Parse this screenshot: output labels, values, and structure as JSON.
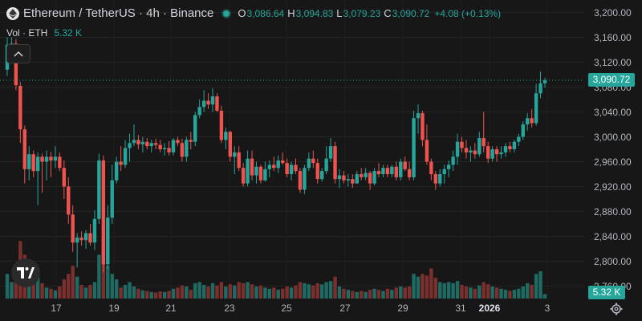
{
  "legend": {
    "title": "Ethereum / TetherUS · 4h · Binance",
    "open_key": "O",
    "open": "3,086.64",
    "high_key": "H",
    "high": "3,094.83",
    "low_key": "L",
    "low": "3,079.23",
    "close_key": "C",
    "close": "3,090.72",
    "change": "+4.08 (+0.13%)",
    "status_color": "#26a69a"
  },
  "volume_legend": {
    "label": "Vol · ETH",
    "value": "5.32 K"
  },
  "price_axis": [
    "3,200.00",
    "3,160.00",
    "3,120.00",
    "3,080.00",
    "3,040.00",
    "3,000.00",
    "2,960.00",
    "2,920.00",
    "2,880.00",
    "2,840.00",
    "2,800.00",
    "2,760.00"
  ],
  "time_axis": [
    {
      "label": "17",
      "bold": false
    },
    {
      "label": "19",
      "bold": false
    },
    {
      "label": "21",
      "bold": false
    },
    {
      "label": "23",
      "bold": false
    },
    {
      "label": "25",
      "bold": false
    },
    {
      "label": "27",
      "bold": false
    },
    {
      "label": "29",
      "bold": false
    },
    {
      "label": "31",
      "bold": false
    },
    {
      "label": "2026",
      "bold": true
    },
    {
      "label": "3",
      "bold": false
    }
  ],
  "last_price_label": "3,090.72",
  "last_volume_label": "5.32 K",
  "colors": {
    "up": "#26a69a",
    "down": "#ef5350",
    "up_vol": "#1f6b63",
    "down_vol": "#7c302e",
    "background": "#171717"
  },
  "icons": {
    "coin": "ethereum-icon",
    "collapse": "chevron-up-icon",
    "logo": "tradingview-logo",
    "settings": "gear-icon"
  },
  "chart_data": {
    "type": "candlestick",
    "symbol": "ETH/USDT",
    "interval": "4h",
    "exchange": "Binance",
    "ylim": [
      2740,
      3220
    ],
    "x_labels": [
      "17",
      "19",
      "21",
      "23",
      "25",
      "27",
      "29",
      "31",
      "2026",
      "3"
    ],
    "candles": [
      [
        3108,
        3160,
        3098,
        3148,
        45
      ],
      [
        3148,
        3160,
        3130,
        3150,
        30
      ],
      [
        3150,
        3157,
        3075,
        3083,
        60
      ],
      [
        3082,
        3088,
        2990,
        3012,
        105
      ],
      [
        3012,
        3018,
        2925,
        2948,
        80
      ],
      [
        2948,
        2985,
        2930,
        2972,
        40
      ],
      [
        2972,
        2978,
        2935,
        2945,
        35
      ],
      [
        2945,
        2975,
        2890,
        2968,
        50
      ],
      [
        2968,
        2973,
        2910,
        2960,
        28
      ],
      [
        2960,
        2978,
        2930,
        2968,
        20
      ],
      [
        2968,
        2976,
        2935,
        2962,
        18
      ],
      [
        2962,
        2985,
        2950,
        2968,
        15
      ],
      [
        2968,
        2975,
        2945,
        2950,
        22
      ],
      [
        2950,
        2962,
        2900,
        2920,
        35
      ],
      [
        2920,
        2935,
        2860,
        2875,
        45
      ],
      [
        2875,
        2890,
        2815,
        2830,
        60
      ],
      [
        2830,
        2845,
        2790,
        2838,
        40
      ],
      [
        2838,
        2848,
        2825,
        2834,
        25
      ],
      [
        2834,
        2850,
        2820,
        2845,
        20
      ],
      [
        2845,
        2860,
        2825,
        2830,
        25
      ],
      [
        2830,
        2882,
        2818,
        2868,
        30
      ],
      [
        2868,
        2973,
        2860,
        2962,
        80
      ],
      [
        2962,
        2970,
        2782,
        2795,
        110
      ],
      [
        2795,
        2890,
        2788,
        2870,
        60
      ],
      [
        2870,
        2955,
        2860,
        2930,
        45
      ],
      [
        2930,
        2968,
        2925,
        2960,
        35
      ],
      [
        2960,
        2985,
        2945,
        2955,
        20
      ],
      [
        2955,
        2995,
        2950,
        2982,
        25
      ],
      [
        2982,
        3005,
        2960,
        2990,
        30
      ],
      [
        2990,
        3020,
        2985,
        2995,
        22
      ],
      [
        2995,
        3003,
        2980,
        2988,
        18
      ],
      [
        2988,
        3000,
        2975,
        2992,
        15
      ],
      [
        2992,
        2998,
        2980,
        2985,
        14
      ],
      [
        2985,
        2995,
        2975,
        2990,
        12
      ],
      [
        2990,
        2997,
        2980,
        2987,
        11
      ],
      [
        2987,
        2995,
        2975,
        2980,
        13
      ],
      [
        2980,
        2990,
        2970,
        2982,
        12
      ],
      [
        2982,
        2993,
        2970,
        2975,
        14
      ],
      [
        2975,
        2998,
        2970,
        2995,
        18
      ],
      [
        2995,
        3000,
        2985,
        2990,
        20
      ],
      [
        2990,
        2997,
        2960,
        2968,
        24
      ],
      [
        2968,
        3000,
        2960,
        2995,
        22
      ],
      [
        2995,
        3008,
        2980,
        2992,
        16
      ],
      [
        2992,
        3040,
        2985,
        3035,
        28
      ],
      [
        3035,
        3060,
        3030,
        3048,
        30
      ],
      [
        3048,
        3075,
        3040,
        3058,
        25
      ],
      [
        3058,
        3070,
        3045,
        3052,
        22
      ],
      [
        3052,
        3078,
        3040,
        3065,
        28
      ],
      [
        3065,
        3070,
        3040,
        3042,
        24
      ],
      [
        3042,
        3050,
        2990,
        2995,
        30
      ],
      [
        2995,
        3015,
        2980,
        3008,
        22
      ],
      [
        3008,
        3010,
        2960,
        2968,
        26
      ],
      [
        2968,
        2985,
        2940,
        2975,
        24
      ],
      [
        2975,
        2985,
        2945,
        2950,
        30
      ],
      [
        2950,
        2958,
        2920,
        2925,
        28
      ],
      [
        2925,
        2978,
        2920,
        2965,
        30
      ],
      [
        2965,
        2978,
        2930,
        2938,
        26
      ],
      [
        2938,
        2960,
        2925,
        2952,
        22
      ],
      [
        2952,
        2955,
        2925,
        2930,
        24
      ],
      [
        2930,
        2960,
        2928,
        2948,
        20
      ],
      [
        2948,
        2962,
        2935,
        2955,
        18
      ],
      [
        2955,
        2968,
        2945,
        2950,
        20
      ],
      [
        2950,
        2970,
        2942,
        2962,
        16
      ],
      [
        2962,
        2975,
        2955,
        2958,
        18
      ],
      [
        2958,
        2965,
        2935,
        2940,
        22
      ],
      [
        2940,
        2960,
        2930,
        2955,
        20
      ],
      [
        2955,
        2965,
        2940,
        2945,
        24
      ],
      [
        2945,
        2950,
        2910,
        2915,
        30
      ],
      [
        2915,
        2955,
        2908,
        2950,
        28
      ],
      [
        2950,
        2975,
        2945,
        2965,
        26
      ],
      [
        2965,
        2978,
        2950,
        2958,
        24
      ],
      [
        2958,
        2965,
        2925,
        2932,
        28
      ],
      [
        2932,
        2950,
        2928,
        2945,
        26
      ],
      [
        2945,
        2985,
        2940,
        2965,
        30
      ],
      [
        2965,
        2998,
        2960,
        2985,
        32
      ],
      [
        2985,
        2992,
        2925,
        2932,
        40
      ],
      [
        2932,
        2948,
        2918,
        2938,
        22
      ],
      [
        2938,
        2945,
        2925,
        2930,
        18
      ],
      [
        2930,
        2940,
        2920,
        2932,
        16
      ],
      [
        2932,
        2940,
        2918,
        2925,
        14
      ],
      [
        2925,
        2945,
        2925,
        2940,
        12
      ],
      [
        2940,
        2950,
        2930,
        2935,
        14
      ],
      [
        2935,
        2950,
        2930,
        2942,
        12
      ],
      [
        2942,
        2945,
        2915,
        2925,
        16
      ],
      [
        2925,
        2950,
        2922,
        2945,
        18
      ],
      [
        2945,
        2958,
        2935,
        2940,
        16
      ],
      [
        2940,
        2955,
        2935,
        2950,
        14
      ],
      [
        2950,
        2955,
        2935,
        2940,
        18
      ],
      [
        2940,
        2955,
        2935,
        2952,
        16
      ],
      [
        2952,
        2960,
        2930,
        2935,
        20
      ],
      [
        2935,
        2965,
        2930,
        2960,
        22
      ],
      [
        2960,
        2968,
        2945,
        2948,
        20
      ],
      [
        2948,
        2960,
        2930,
        2935,
        22
      ],
      [
        2935,
        3042,
        2930,
        3030,
        45
      ],
      [
        3030,
        3052,
        3005,
        3038,
        40
      ],
      [
        3038,
        3042,
        2985,
        2995,
        45
      ],
      [
        2995,
        3020,
        2955,
        2960,
        42
      ],
      [
        2960,
        2965,
        2930,
        2940,
        55
      ],
      [
        2940,
        2945,
        2915,
        2925,
        38
      ],
      [
        2925,
        2948,
        2920,
        2940,
        30
      ],
      [
        2940,
        2955,
        2925,
        2948,
        28
      ],
      [
        2948,
        2962,
        2935,
        2955,
        30
      ],
      [
        2955,
        2978,
        2945,
        2968,
        28
      ],
      [
        2968,
        3005,
        2955,
        2992,
        32
      ],
      [
        2992,
        3000,
        2975,
        2982,
        25
      ],
      [
        2982,
        2995,
        2965,
        2975,
        22
      ],
      [
        2975,
        2985,
        2960,
        2978,
        20
      ],
      [
        2978,
        2990,
        2965,
        2972,
        18
      ],
      [
        2972,
        3008,
        2968,
        2998,
        24
      ],
      [
        2998,
        3040,
        2975,
        2985,
        30
      ],
      [
        2985,
        2992,
        2958,
        2965,
        26
      ],
      [
        2965,
        2985,
        2960,
        2980,
        22
      ],
      [
        2980,
        2985,
        2960,
        2972,
        20
      ],
      [
        2972,
        2985,
        2965,
        2975,
        18
      ],
      [
        2975,
        2990,
        2968,
        2985,
        16
      ],
      [
        2985,
        2992,
        2975,
        2980,
        14
      ],
      [
        2980,
        2995,
        2975,
        2992,
        16
      ],
      [
        2992,
        3005,
        2985,
        3000,
        18
      ],
      [
        3000,
        3025,
        2995,
        3020,
        22
      ],
      [
        3020,
        3038,
        3010,
        3030,
        28
      ],
      [
        3030,
        3045,
        3015,
        3022,
        25
      ],
      [
        3022,
        3085,
        3018,
        3070,
        45
      ],
      [
        3070,
        3105,
        3062,
        3086,
        50
      ],
      [
        3086,
        3095,
        3079,
        3091,
        8
      ]
    ]
  }
}
